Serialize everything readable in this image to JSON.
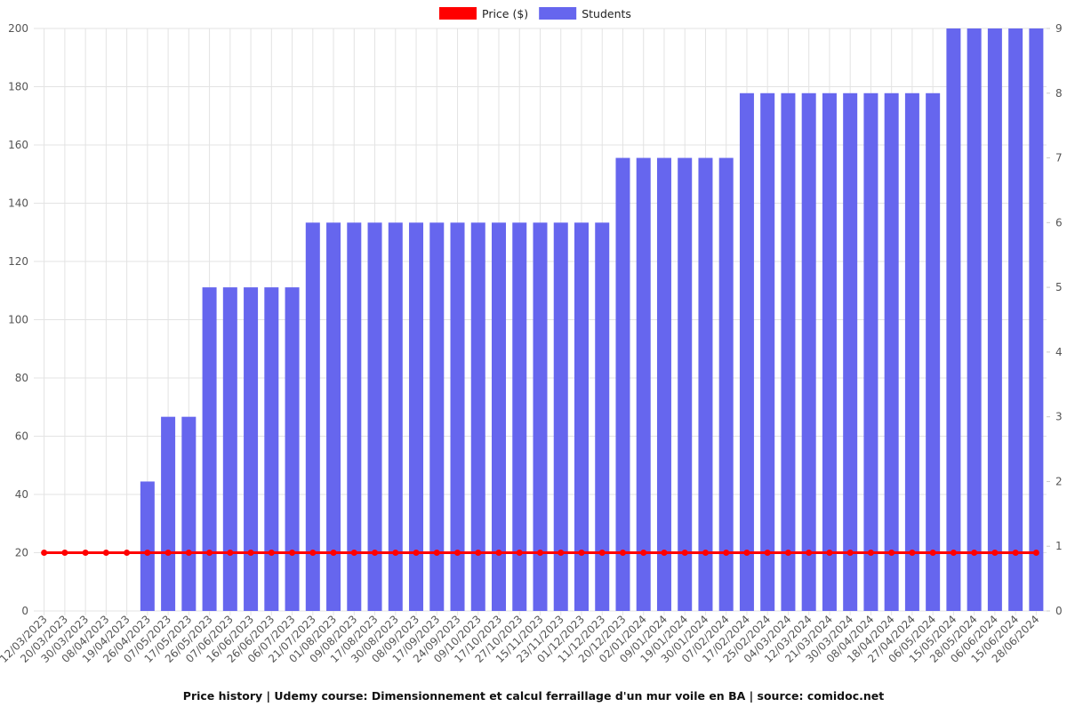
{
  "chart_data": {
    "type": "bar-line",
    "title": "Price history | Udemy course: Dimensionnement et calcul ferraillage d'un mur voile en BA | source: comidoc.net",
    "categories": [
      "12/03/2023",
      "20/03/2023",
      "30/03/2023",
      "08/04/2023",
      "19/04/2023",
      "26/04/2023",
      "07/05/2023",
      "17/05/2023",
      "26/05/2023",
      "07/06/2023",
      "16/06/2023",
      "26/06/2023",
      "06/07/2023",
      "21/07/2023",
      "01/08/2023",
      "09/08/2023",
      "17/08/2023",
      "30/08/2023",
      "08/09/2023",
      "17/09/2023",
      "24/09/2023",
      "09/10/2023",
      "17/10/2023",
      "27/10/2023",
      "15/11/2023",
      "23/11/2023",
      "01/12/2023",
      "11/12/2023",
      "20/12/2023",
      "02/01/2024",
      "09/01/2024",
      "19/01/2024",
      "30/01/2024",
      "07/02/2024",
      "17/02/2024",
      "25/02/2024",
      "04/03/2024",
      "12/03/2024",
      "21/03/2024",
      "30/03/2024",
      "08/04/2024",
      "18/04/2024",
      "27/04/2024",
      "06/05/2024",
      "15/05/2024",
      "28/05/2024",
      "06/06/2024",
      "15/06/2024",
      "28/06/2024"
    ],
    "series": [
      {
        "name": "Price ($)",
        "color": "#ff0000",
        "kind": "line",
        "values": [
          20,
          20,
          20,
          20,
          20,
          20,
          20,
          20,
          20,
          20,
          20,
          20,
          20,
          20,
          20,
          20,
          20,
          20,
          20,
          20,
          20,
          20,
          20,
          20,
          20,
          20,
          20,
          20,
          20,
          20,
          20,
          20,
          20,
          20,
          20,
          20,
          20,
          20,
          20,
          20,
          20,
          20,
          20,
          20,
          20,
          20,
          20,
          20,
          20
        ]
      },
      {
        "name": "Students",
        "color": "#6666ee",
        "kind": "bar",
        "axis": "y2",
        "values": [
          0,
          0,
          0,
          0,
          0,
          2,
          3,
          3,
          5,
          5,
          5,
          5,
          5,
          6,
          6,
          6,
          6,
          6,
          6,
          6,
          6,
          6,
          6,
          6,
          6,
          6,
          6,
          6,
          7,
          7,
          7,
          7,
          7,
          7,
          8,
          8,
          8,
          8,
          8,
          8,
          8,
          8,
          8,
          8,
          9,
          9,
          9,
          9,
          9
        ]
      }
    ],
    "ylim": [
      0,
      200
    ],
    "yticks": [
      0,
      20,
      40,
      60,
      80,
      100,
      120,
      140,
      160,
      180,
      200
    ],
    "y2lim": [
      0,
      9
    ],
    "y2ticks": [
      0,
      1,
      2,
      3,
      4,
      5,
      6,
      7,
      8,
      9
    ],
    "grid": true
  }
}
